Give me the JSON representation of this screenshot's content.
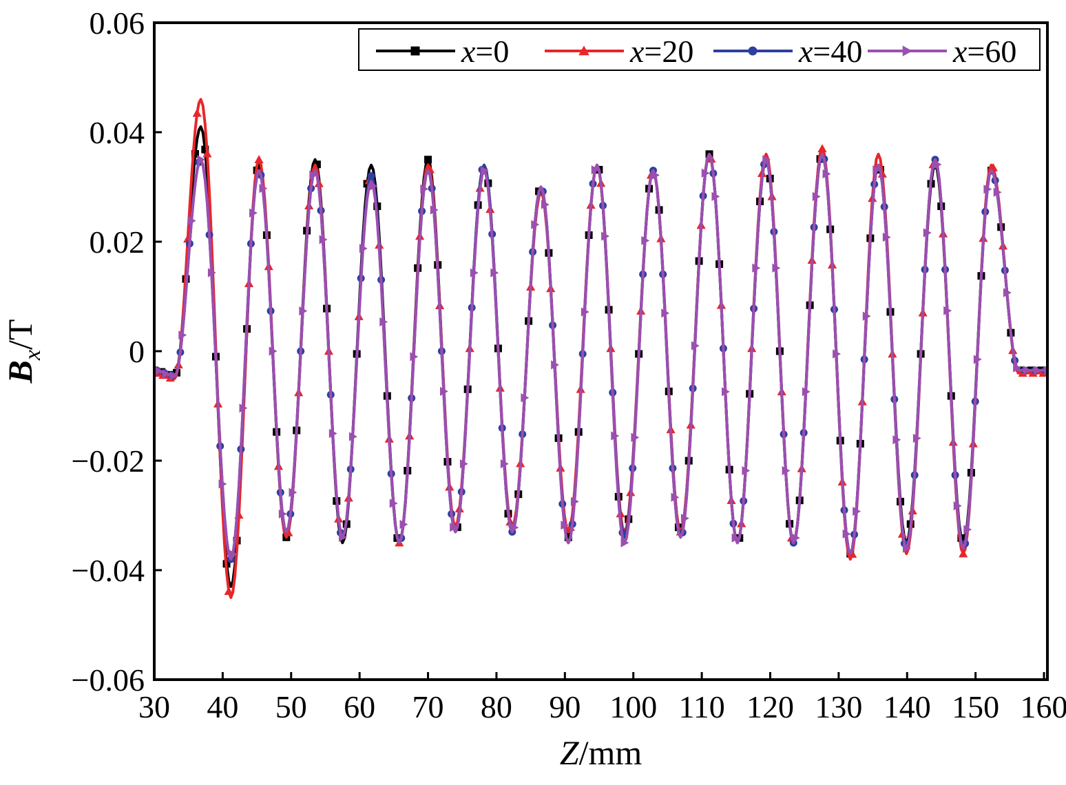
{
  "chart_data": {
    "type": "line",
    "xlabel": {
      "var": "Z",
      "unit": "/mm"
    },
    "ylabel": {
      "var": "B",
      "sub": "x",
      "unit": "/T"
    },
    "xlim": [
      30,
      160.5
    ],
    "ylim": [
      -0.06,
      0.06
    ],
    "x_ticks": [
      30,
      40,
      50,
      60,
      70,
      80,
      90,
      100,
      110,
      120,
      130,
      140,
      150,
      160
    ],
    "y_ticks": [
      -0.06,
      -0.04,
      -0.02,
      0,
      0.02,
      0.04,
      0.06
    ],
    "y_tick_labels": [
      "−0.06",
      "−0.04",
      "−0.02",
      "0",
      "0.02",
      "0.04",
      "0.06"
    ],
    "legend_position": "top-right",
    "peaks_z": [
      36.8,
      45.3,
      53.5,
      61.7,
      70.0,
      78.2,
      86.5,
      94.7,
      102.9,
      111.1,
      119.4,
      127.6,
      135.8,
      144.1,
      152.3
    ],
    "troughs_z": [
      41.2,
      49.3,
      57.5,
      65.8,
      74.0,
      82.3,
      90.5,
      98.7,
      106.9,
      115.2,
      123.4,
      131.7,
      139.9,
      148.2
    ],
    "series": [
      {
        "name": "x=0",
        "var": "x",
        "eq": "=0",
        "color": "#000000",
        "marker": "square",
        "peaks": [
          0.041,
          0.034,
          0.035,
          0.034,
          0.035,
          0.034,
          0.03,
          0.034,
          0.033,
          0.036,
          0.035,
          0.036,
          0.034,
          0.034,
          0.033
        ],
        "troughs": [
          -0.043,
          -0.034,
          -0.035,
          -0.035,
          -0.033,
          -0.033,
          -0.034,
          -0.034,
          -0.033,
          -0.035,
          -0.035,
          -0.037,
          -0.035,
          -0.035
        ],
        "start": -0.0035,
        "end": -0.0035
      },
      {
        "name": "x=20",
        "var": "x",
        "eq": "=20",
        "color": "#e8262a",
        "marker": "triangle",
        "peaks": [
          0.046,
          0.035,
          0.034,
          0.032,
          0.034,
          0.033,
          0.029,
          0.034,
          0.033,
          0.036,
          0.036,
          0.037,
          0.036,
          0.035,
          0.034
        ],
        "troughs": [
          -0.045,
          -0.034,
          -0.034,
          -0.035,
          -0.032,
          -0.032,
          -0.033,
          -0.033,
          -0.033,
          -0.035,
          -0.035,
          -0.038,
          -0.037,
          -0.037
        ],
        "start": -0.004,
        "end": -0.004
      },
      {
        "name": "x=40",
        "var": "x",
        "eq": "=40",
        "color": "#2e3f9e",
        "marker": "circle",
        "peaks": [
          0.035,
          0.033,
          0.033,
          0.032,
          0.033,
          0.034,
          0.03,
          0.034,
          0.033,
          0.036,
          0.035,
          0.036,
          0.034,
          0.035,
          0.033
        ],
        "troughs": [
          -0.038,
          -0.033,
          -0.034,
          -0.035,
          -0.033,
          -0.033,
          -0.035,
          -0.034,
          -0.034,
          -0.035,
          -0.035,
          -0.037,
          -0.036,
          -0.036
        ],
        "start": -0.0035,
        "end": -0.0035
      },
      {
        "name": "x=60",
        "var": "x",
        "eq": "=60",
        "color": "#9b4fb0",
        "marker": "triangle-right",
        "peaks": [
          0.035,
          0.033,
          0.033,
          0.031,
          0.033,
          0.033,
          0.03,
          0.034,
          0.033,
          0.036,
          0.035,
          0.036,
          0.034,
          0.035,
          0.033
        ],
        "troughs": [
          -0.038,
          -0.033,
          -0.034,
          -0.035,
          -0.033,
          -0.033,
          -0.035,
          -0.035,
          -0.034,
          -0.035,
          -0.035,
          -0.037,
          -0.036,
          -0.036
        ],
        "start": -0.0035,
        "end": -0.0035
      }
    ]
  }
}
